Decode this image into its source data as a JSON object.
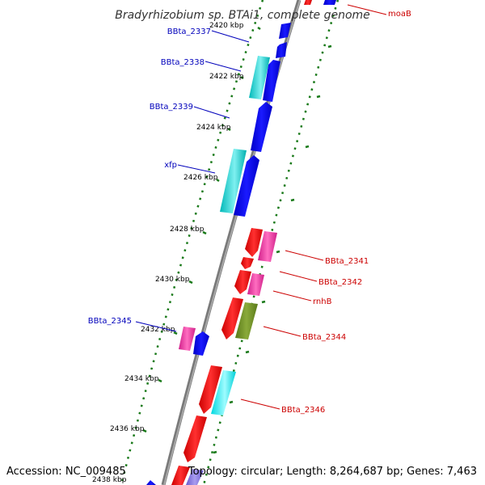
{
  "title": "Bradyrhizobium sp. BTAi1, complete genome",
  "accession": "Accession: NC_009485",
  "topology": "Topology: circular; Length: 8,264,687 bp; Genes: 7,463",
  "colors": {
    "backbone": "#7a7a7a",
    "ticks": "#1a7a1a",
    "forward_label": "#0000bb",
    "reverse_label": "#cc0000"
  },
  "ticks": [
    "2420 kbp",
    "2422 kbp",
    "2424 kbp",
    "2426 kbp",
    "2428 kbp",
    "2430 kbp",
    "2432 kbp",
    "2434 kbp",
    "2436 kbp",
    "2438 kbp"
  ],
  "gene_labels": {
    "moaB": "moaB",
    "bbta_2337": "BBta_2337",
    "bbta_2338": "BBta_2338",
    "bbta_2339": "BBta_2339",
    "xfp": "xfp",
    "bbta_2341": "BBta_2341",
    "bbta_2342": "BBta_2342",
    "rnhB": "rnhB",
    "bbta_2344": "BBta_2344",
    "bbta_2345": "BBta_2345",
    "bbta_2346": "BBta_2346"
  }
}
